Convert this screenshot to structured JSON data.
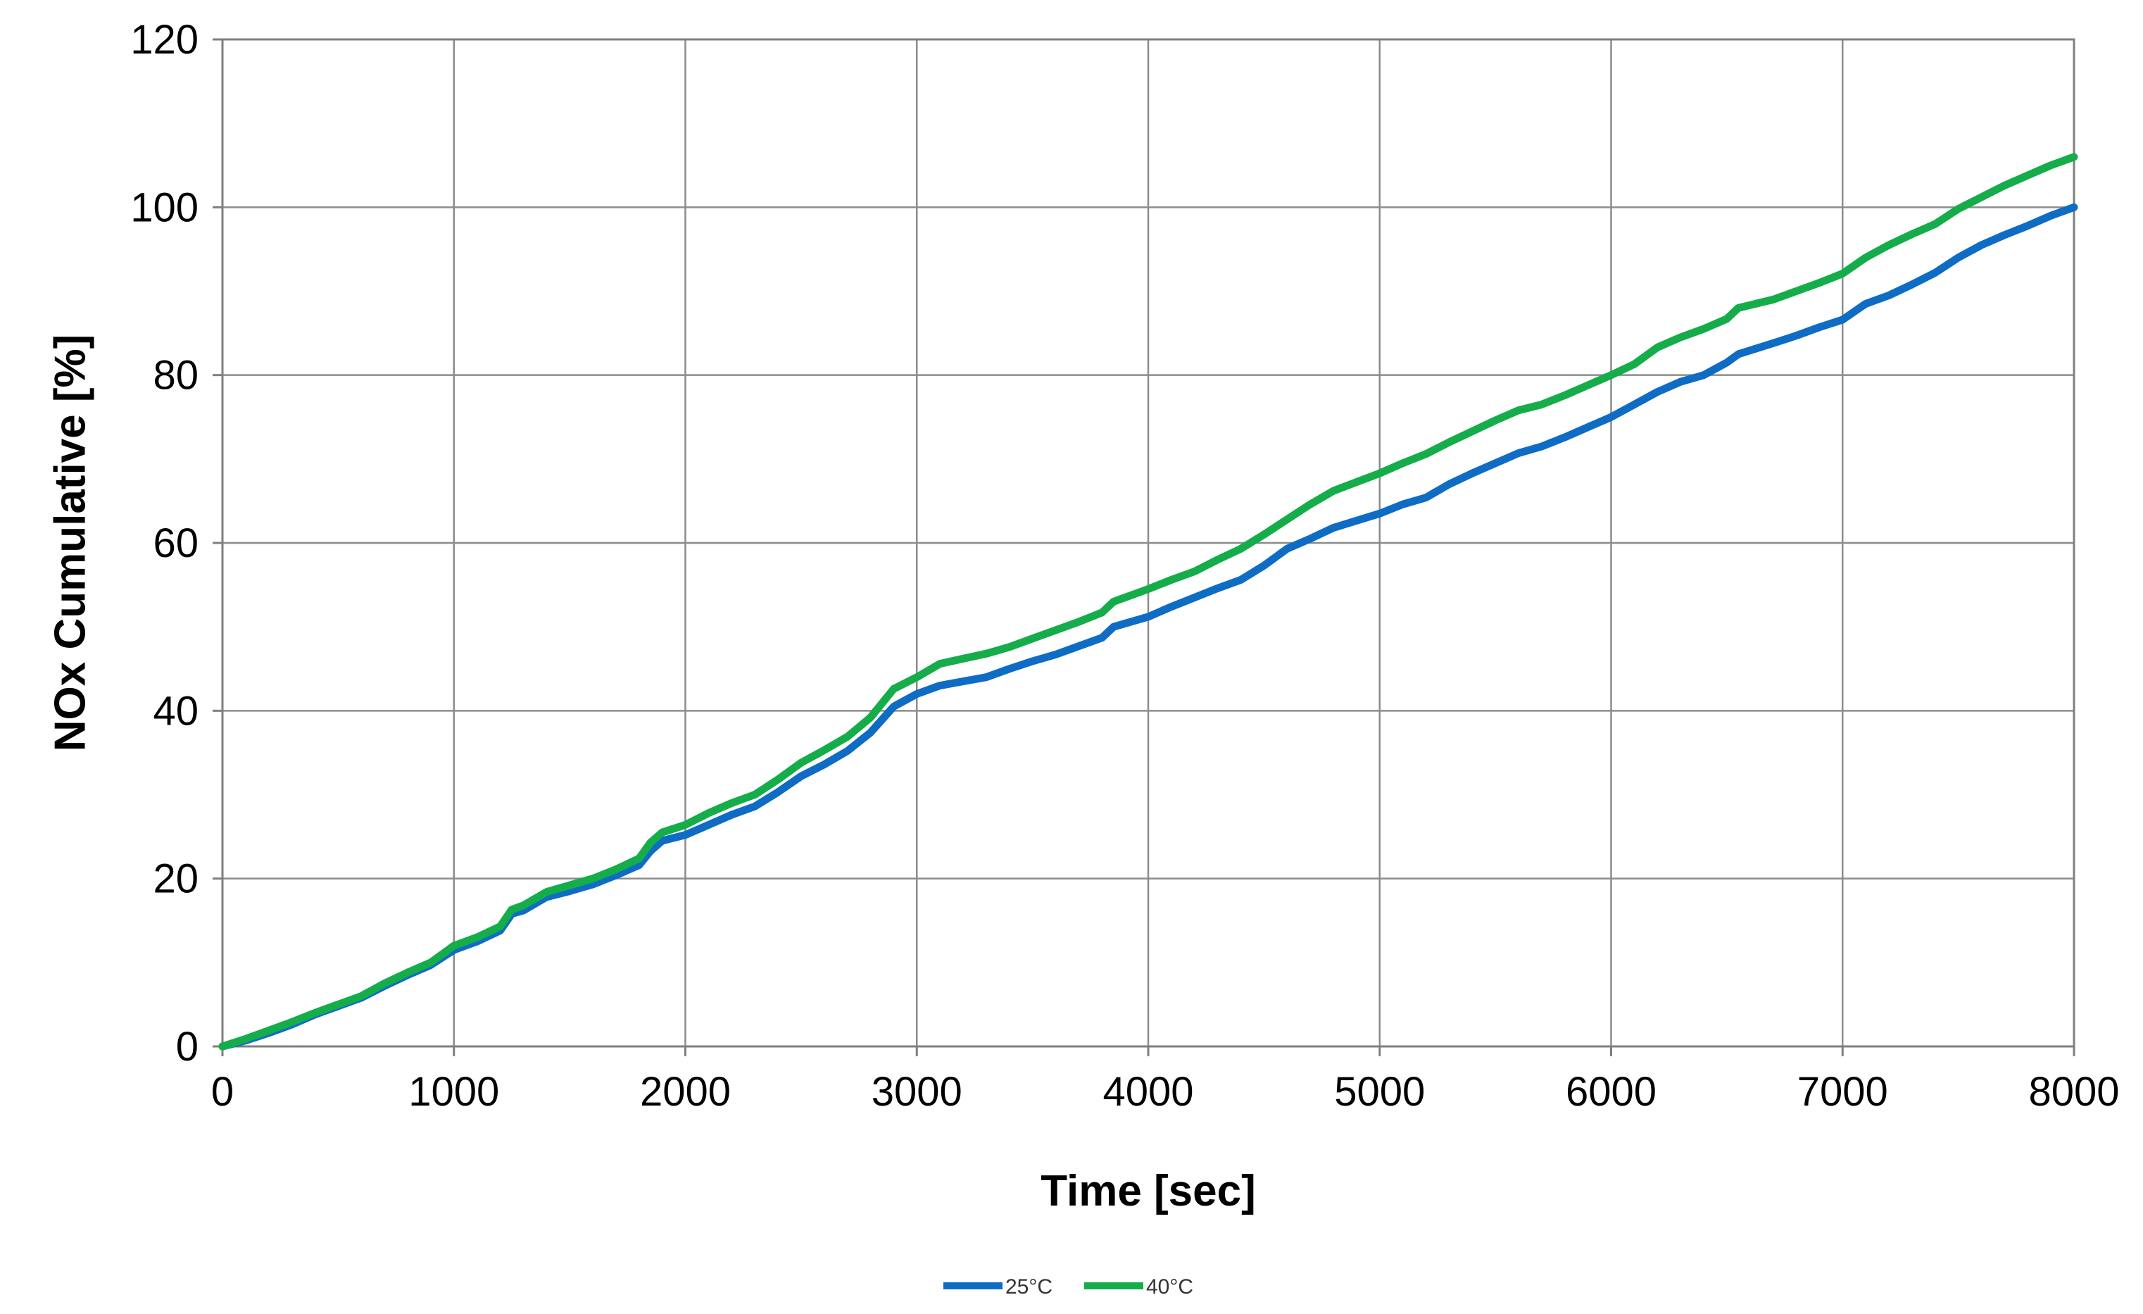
{
  "chart_data": {
    "type": "line",
    "xlabel": "Time [sec]",
    "ylabel": "NOx Cumulative [%]",
    "xlim": [
      0,
      8000
    ],
    "ylim": [
      0,
      120
    ],
    "x_ticks": [
      0,
      1000,
      2000,
      3000,
      4000,
      5000,
      6000,
      7000,
      8000
    ],
    "y_ticks": [
      0,
      20,
      40,
      60,
      80,
      100,
      120
    ],
    "grid": true,
    "legend_position": "bottom-center",
    "series": [
      {
        "name": "25°C",
        "color": "#0f6cc4",
        "points": [
          [
            0,
            0
          ],
          [
            100,
            0.7
          ],
          [
            200,
            1.6
          ],
          [
            300,
            2.6
          ],
          [
            400,
            3.8
          ],
          [
            500,
            4.8
          ],
          [
            600,
            5.8
          ],
          [
            700,
            7.2
          ],
          [
            800,
            8.5
          ],
          [
            900,
            9.7
          ],
          [
            1000,
            11.5
          ],
          [
            1100,
            12.5
          ],
          [
            1200,
            13.8
          ],
          [
            1250,
            15.8
          ],
          [
            1300,
            16.2
          ],
          [
            1400,
            17.8
          ],
          [
            1500,
            18.5
          ],
          [
            1600,
            19.3
          ],
          [
            1700,
            20.4
          ],
          [
            1800,
            21.6
          ],
          [
            1850,
            23.3
          ],
          [
            1900,
            24.5
          ],
          [
            2000,
            25.2
          ],
          [
            2100,
            26.4
          ],
          [
            2200,
            27.6
          ],
          [
            2300,
            28.6
          ],
          [
            2400,
            30.3
          ],
          [
            2500,
            32.2
          ],
          [
            2600,
            33.6
          ],
          [
            2700,
            35.2
          ],
          [
            2800,
            37.4
          ],
          [
            2900,
            40.5
          ],
          [
            3000,
            42.0
          ],
          [
            3100,
            43.0
          ],
          [
            3200,
            43.5
          ],
          [
            3300,
            44.0
          ],
          [
            3400,
            45.0
          ],
          [
            3500,
            45.9
          ],
          [
            3600,
            46.7
          ],
          [
            3700,
            47.7
          ],
          [
            3800,
            48.7
          ],
          [
            3850,
            50.0
          ],
          [
            4000,
            51.2
          ],
          [
            4100,
            52.4
          ],
          [
            4200,
            53.5
          ],
          [
            4300,
            54.6
          ],
          [
            4400,
            55.6
          ],
          [
            4500,
            57.3
          ],
          [
            4600,
            59.3
          ],
          [
            4700,
            60.5
          ],
          [
            4800,
            61.8
          ],
          [
            5000,
            63.5
          ],
          [
            5100,
            64.6
          ],
          [
            5200,
            65.4
          ],
          [
            5300,
            67.0
          ],
          [
            5400,
            68.3
          ],
          [
            5500,
            69.5
          ],
          [
            5600,
            70.7
          ],
          [
            5700,
            71.5
          ],
          [
            5800,
            72.6
          ],
          [
            5900,
            73.8
          ],
          [
            6000,
            75.0
          ],
          [
            6100,
            76.5
          ],
          [
            6200,
            78.0
          ],
          [
            6300,
            79.2
          ],
          [
            6400,
            80.0
          ],
          [
            6500,
            81.5
          ],
          [
            6550,
            82.5
          ],
          [
            6700,
            83.8
          ],
          [
            6800,
            84.7
          ],
          [
            6900,
            85.7
          ],
          [
            7000,
            86.6
          ],
          [
            7100,
            88.5
          ],
          [
            7200,
            89.5
          ],
          [
            7300,
            90.8
          ],
          [
            7400,
            92.2
          ],
          [
            7500,
            94.0
          ],
          [
            7600,
            95.5
          ],
          [
            7700,
            96.7
          ],
          [
            7800,
            97.8
          ],
          [
            7900,
            99.0
          ],
          [
            8000,
            100.0
          ]
        ]
      },
      {
        "name": "40°C",
        "color": "#14ad4a",
        "points": [
          [
            0,
            0
          ],
          [
            100,
            0.9
          ],
          [
            200,
            1.9
          ],
          [
            300,
            2.9
          ],
          [
            400,
            4.0
          ],
          [
            500,
            5.0
          ],
          [
            600,
            6.0
          ],
          [
            700,
            7.5
          ],
          [
            800,
            8.8
          ],
          [
            900,
            10.0
          ],
          [
            1000,
            12.0
          ],
          [
            1100,
            13.0
          ],
          [
            1200,
            14.3
          ],
          [
            1250,
            16.3
          ],
          [
            1300,
            16.8
          ],
          [
            1400,
            18.4
          ],
          [
            1500,
            19.2
          ],
          [
            1600,
            20.0
          ],
          [
            1700,
            21.1
          ],
          [
            1800,
            22.4
          ],
          [
            1850,
            24.3
          ],
          [
            1900,
            25.5
          ],
          [
            2000,
            26.4
          ],
          [
            2100,
            27.8
          ],
          [
            2200,
            29.0
          ],
          [
            2300,
            30.0
          ],
          [
            2400,
            31.8
          ],
          [
            2500,
            33.8
          ],
          [
            2600,
            35.3
          ],
          [
            2700,
            36.9
          ],
          [
            2800,
            39.2
          ],
          [
            2900,
            42.6
          ],
          [
            3000,
            44.0
          ],
          [
            3100,
            45.6
          ],
          [
            3200,
            46.2
          ],
          [
            3300,
            46.8
          ],
          [
            3400,
            47.6
          ],
          [
            3500,
            48.6
          ],
          [
            3600,
            49.6
          ],
          [
            3700,
            50.6
          ],
          [
            3800,
            51.7
          ],
          [
            3850,
            53.0
          ],
          [
            4000,
            54.5
          ],
          [
            4100,
            55.6
          ],
          [
            4200,
            56.6
          ],
          [
            4300,
            58.0
          ],
          [
            4400,
            59.3
          ],
          [
            4500,
            61.0
          ],
          [
            4600,
            62.8
          ],
          [
            4700,
            64.6
          ],
          [
            4800,
            66.2
          ],
          [
            5000,
            68.3
          ],
          [
            5100,
            69.5
          ],
          [
            5200,
            70.6
          ],
          [
            5300,
            72.0
          ],
          [
            5400,
            73.3
          ],
          [
            5500,
            74.6
          ],
          [
            5600,
            75.8
          ],
          [
            5700,
            76.5
          ],
          [
            5800,
            77.6
          ],
          [
            5900,
            78.8
          ],
          [
            6000,
            80.0
          ],
          [
            6100,
            81.3
          ],
          [
            6200,
            83.3
          ],
          [
            6300,
            84.5
          ],
          [
            6400,
            85.5
          ],
          [
            6500,
            86.7
          ],
          [
            6550,
            88.0
          ],
          [
            6700,
            89.0
          ],
          [
            6800,
            90.0
          ],
          [
            6900,
            91.0
          ],
          [
            7000,
            92.1
          ],
          [
            7100,
            94.0
          ],
          [
            7200,
            95.5
          ],
          [
            7300,
            96.8
          ],
          [
            7400,
            98.0
          ],
          [
            7500,
            99.8
          ],
          [
            7600,
            101.2
          ],
          [
            7700,
            102.6
          ],
          [
            7800,
            103.8
          ],
          [
            7900,
            105.0
          ],
          [
            8000,
            106.0
          ]
        ]
      }
    ]
  }
}
